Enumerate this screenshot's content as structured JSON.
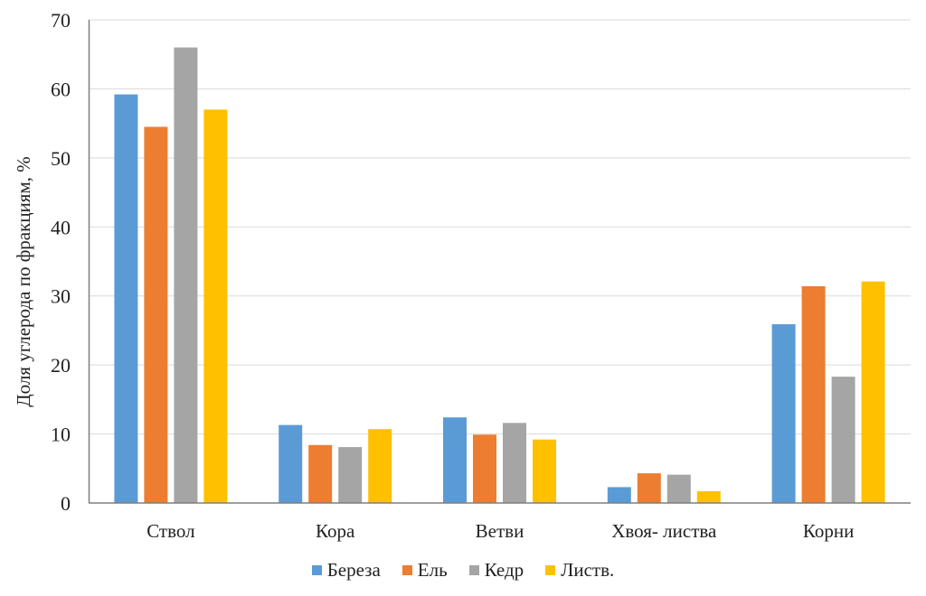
{
  "chart_data": {
    "type": "bar",
    "title": "",
    "xlabel": "",
    "ylabel": "Доля углерода по фракциям, %",
    "ylim": [
      0,
      70
    ],
    "yticks": [
      0,
      10,
      20,
      30,
      40,
      50,
      60,
      70
    ],
    "grid": true,
    "legend_position": "bottom",
    "categories": [
      "Ствол",
      "Кора",
      "Ветви",
      "Хвоя- листва",
      "Корни"
    ],
    "series": [
      {
        "name": "Береза",
        "color": "#5B9BD5",
        "values": [
          59.2,
          11.3,
          12.4,
          2.3,
          25.9
        ]
      },
      {
        "name": "Ель",
        "color": "#ED7D31",
        "values": [
          54.5,
          8.4,
          9.9,
          4.3,
          31.4
        ]
      },
      {
        "name": "Кедр",
        "color": "#A5A5A5",
        "values": [
          66.0,
          8.1,
          11.6,
          4.1,
          18.3
        ]
      },
      {
        "name": "Листв.",
        "color": "#FFC000",
        "values": [
          57.0,
          10.7,
          9.2,
          1.7,
          32.1
        ]
      }
    ]
  }
}
